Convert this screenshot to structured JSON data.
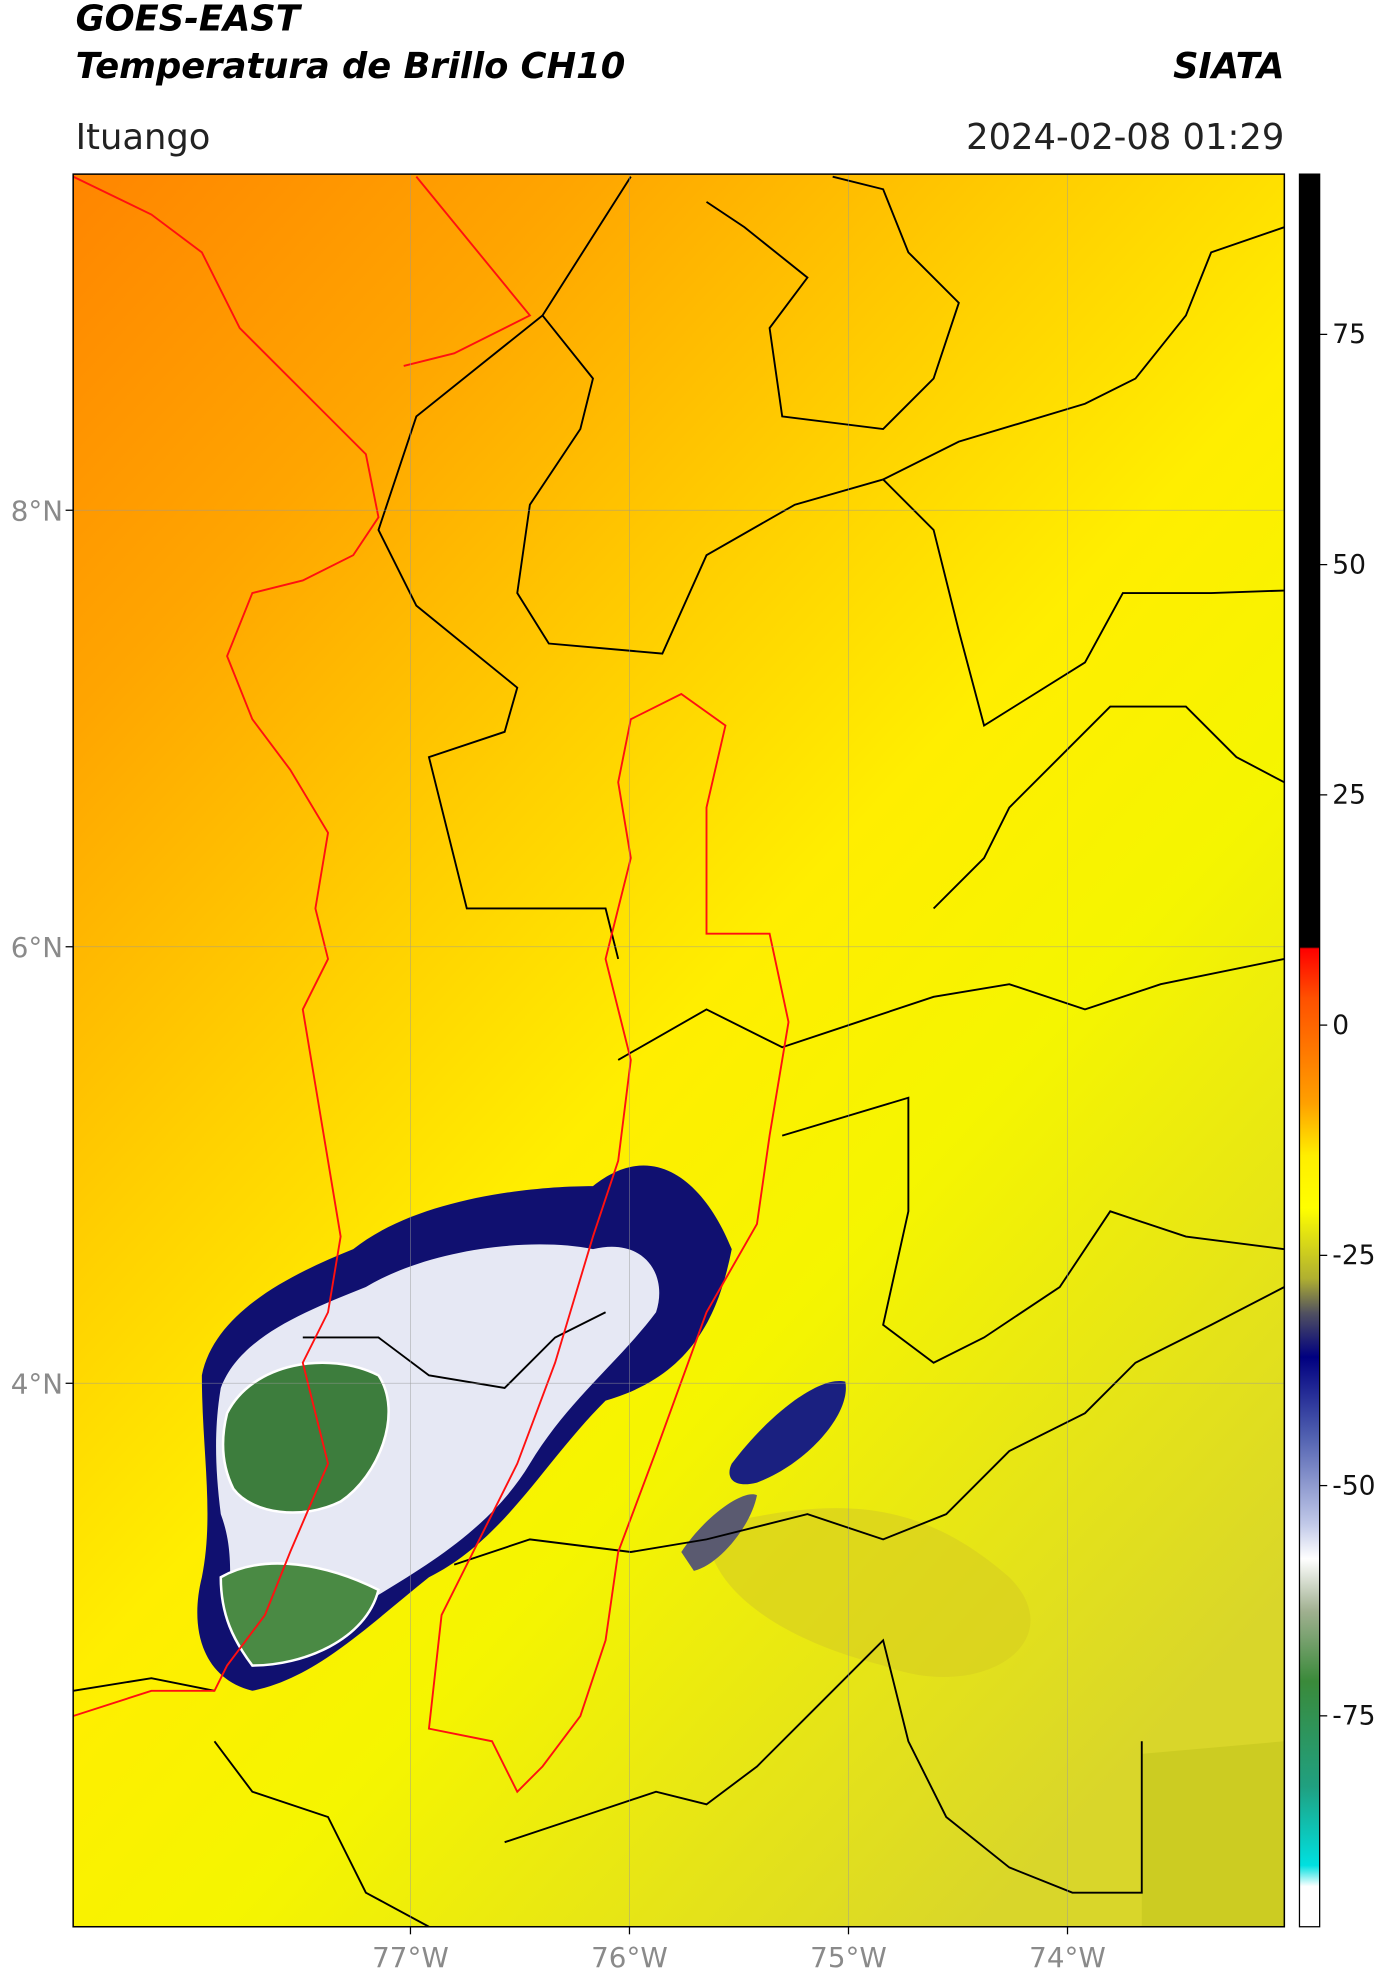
{
  "header": {
    "title": "GOES-EAST",
    "subtitle": "Temperatura de Brillo CH10",
    "brand": "SIATA",
    "location": "Ituango",
    "timestamp": "2024-02-08 01:29"
  },
  "map": {
    "xlim": [
      -78.54,
      -73.01
    ],
    "ylim": [
      1.51,
      9.54
    ],
    "xticks": [
      {
        "value": -77,
        "label": "77°W"
      },
      {
        "value": -76,
        "label": "76°W"
      },
      {
        "value": -75,
        "label": "75°W"
      },
      {
        "value": -74,
        "label": "74°W"
      }
    ],
    "yticks": [
      {
        "value": 8,
        "label": "8°N"
      },
      {
        "value": 6,
        "label": "6°N"
      },
      {
        "value": 4,
        "label": "4°N"
      }
    ],
    "grid": true
  },
  "colorbar": {
    "lim": [
      -97.9,
      92.4
    ],
    "ticks": [
      75,
      50,
      25,
      0,
      -25,
      -50,
      -75
    ]
  }
}
